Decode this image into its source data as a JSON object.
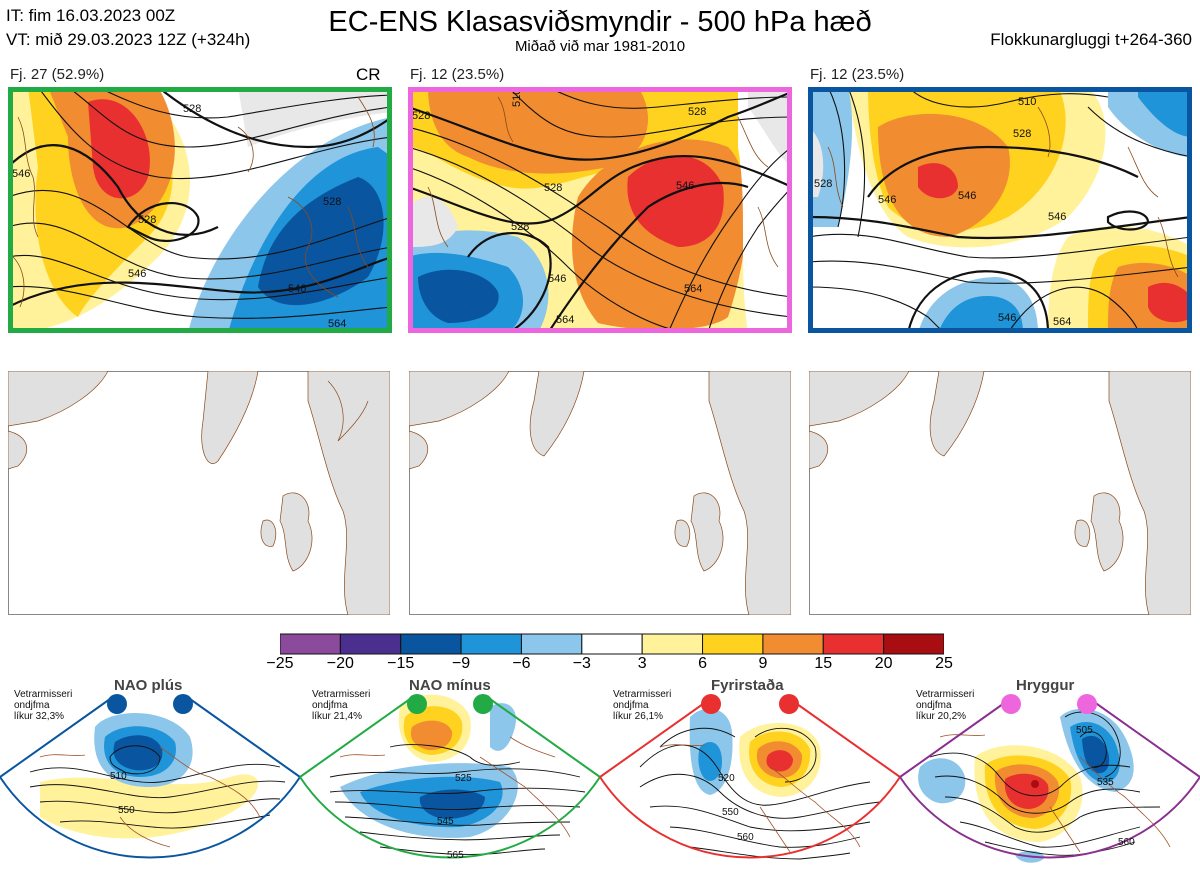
{
  "header": {
    "it_line": "IT: fim 16.03.2023 00Z",
    "vt_line": "VT: mið 29.03.2023 12Z  (+324h)",
    "title": "EC-ENS Klasasviðsmyndir - 500 hPa hæð",
    "subtitle": "Miðað við mar 1981-2010",
    "window": "Flokkunargluggi t+264-360"
  },
  "clusters": [
    {
      "label": "Fj. 27 (52.9%)",
      "tag": "CR",
      "frame_color": "#22aa44",
      "contour_labels": [
        "546",
        "528",
        "546",
        "528",
        "546",
        "528",
        "564"
      ]
    },
    {
      "label": "Fj. 12 (23.5%)",
      "tag": "",
      "frame_color": "#ee66dd",
      "contour_labels": [
        "510",
        "528",
        "528",
        "546",
        "528",
        "546",
        "564",
        "564"
      ]
    },
    {
      "label": "Fj. 12 (23.5%)",
      "tag": "",
      "frame_color": "#0a55a0",
      "contour_labels": [
        "510",
        "528",
        "528",
        "546",
        "546",
        "546",
        "546",
        "564"
      ]
    }
  ],
  "colorbar": {
    "ticks": [
      "−25",
      "−20",
      "−15",
      "−9",
      "−6",
      "−3",
      "3",
      "6",
      "9",
      "15",
      "20",
      "25"
    ],
    "colors": [
      "#8c4a9c",
      "#4a2f8f",
      "#0a55a0",
      "#1f94d8",
      "#8cc6ea",
      "#ffffff",
      "#fff29a",
      "#ffd21f",
      "#f28c30",
      "#e83030",
      "#a80d12"
    ]
  },
  "regimes": [
    {
      "name": "NAO plús",
      "note": [
        "Vetrarmisseri",
        "ondjfma",
        "líkur 32,3%"
      ],
      "frame_color": "#0a55a0",
      "dot_color": "#0a55a0",
      "contour_labels": [
        "510",
        "550"
      ]
    },
    {
      "name": "NAO mínus",
      "note": [
        "Vetrarmisseri",
        "ondjfma",
        "líkur 21,4%"
      ],
      "frame_color": "#22aa44",
      "dot_color": "#22aa44",
      "contour_labels": [
        "525",
        "545",
        "565"
      ]
    },
    {
      "name": "Fyrirstaða",
      "note": [
        "Vetrarmisseri",
        "ondjfma",
        "líkur 26,1%"
      ],
      "frame_color": "#e83030",
      "dot_color": "#e83030",
      "contour_labels": [
        "520",
        "550",
        "560"
      ]
    },
    {
      "name": "Hryggur",
      "note": [
        "Vetrarmisseri",
        "ondjfma",
        "líkur 20,2%"
      ],
      "frame_color": "#8a2f8f",
      "dot_color": "#ee66dd",
      "contour_labels": [
        "505",
        "535",
        "560"
      ]
    }
  ]
}
